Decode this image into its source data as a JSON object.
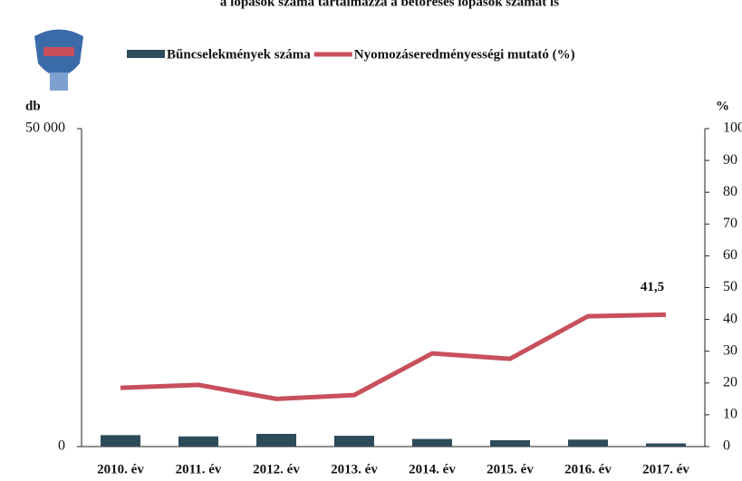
{
  "chart_data": {
    "type": "bar_line",
    "note": "a lopások száma tartalmazza a betöréses lopások számát is",
    "y_label": "db",
    "y2_label": "%",
    "categories": [
      "2010. év",
      "2011. év",
      "2012. év",
      "2013. év",
      "2014. év",
      "2015. év",
      "2016. év",
      "2017. év"
    ],
    "series": [
      {
        "name": "Bűncselekmények száma",
        "color": "#2e4b5b",
        "type": "bar",
        "axis": "y",
        "values": [
          1800,
          1600,
          2000,
          1700,
          1200,
          1000,
          1100,
          500
        ]
      },
      {
        "name": "Nyomozáseredményességi mutató (%)",
        "color": "#c8505c",
        "type": "line",
        "axis": "y2",
        "values": [
          18.5,
          19.4,
          15,
          16.2,
          29.3,
          27.6,
          41,
          41.5
        ],
        "value_labels": [
          null,
          null,
          null,
          null,
          null,
          null,
          null,
          "41,5"
        ]
      }
    ],
    "ylim": [
      0,
      50000
    ],
    "yticks": [
      0,
      {
        "value": 50000,
        "label": "50 000"
      }
    ],
    "y2lim": [
      0,
      100
    ],
    "y2ticks": [
      0,
      10,
      20,
      30,
      40,
      50,
      60,
      70,
      80,
      90,
      100
    ]
  }
}
